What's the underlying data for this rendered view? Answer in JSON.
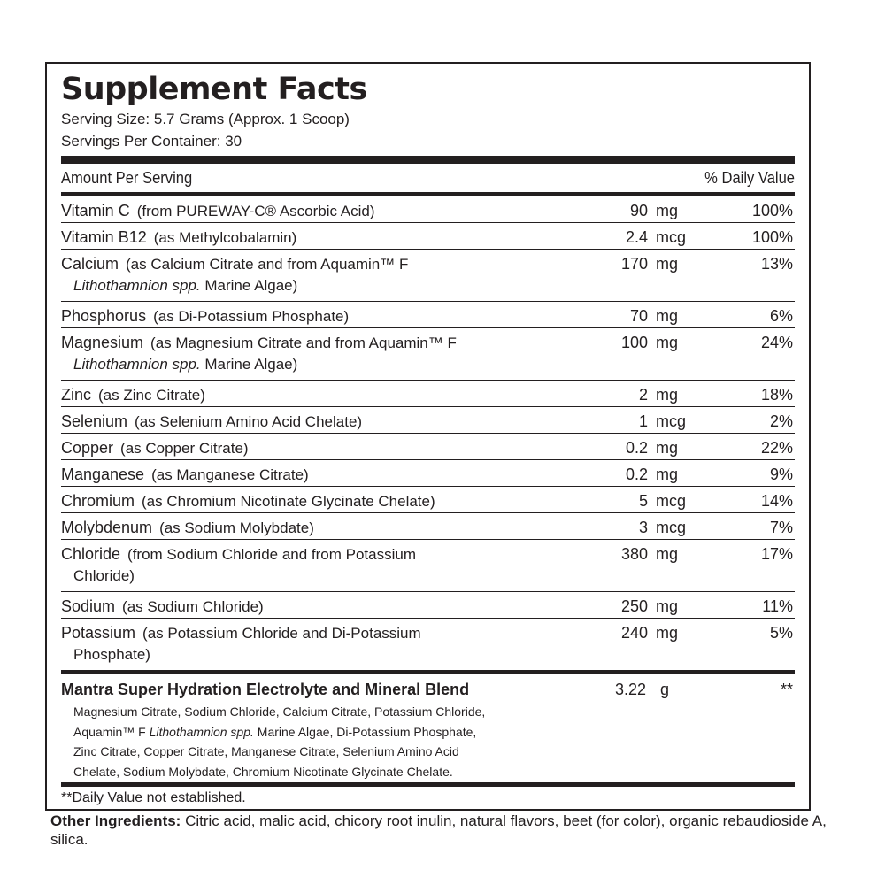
{
  "title": "Supplement Facts",
  "serving_size": "Serving Size: 5.7 Grams (Approx. 1 Scoop)",
  "servings_per_container": "Servings Per Container: 30",
  "header": {
    "amount": "Amount Per Serving",
    "daily_value": "% Daily Value"
  },
  "nutrients": [
    {
      "name": "Vitamin C",
      "source": "(from PUREWAY-C® Ascorbic Acid)",
      "cont": "",
      "amount": "90",
      "unit": "mg",
      "dv": "100%"
    },
    {
      "name": "Vitamin B12",
      "source": "(as Methylcobalamin)",
      "cont": "",
      "amount": "2.4",
      "unit": "mcg",
      "dv": "100%"
    },
    {
      "name": "Calcium",
      "source": "(as Calcium Citrate and from Aquamin™ F",
      "cont_italic": "Lithothamnion spp.",
      "cont": " Marine Algae)",
      "amount": "170",
      "unit": "mg",
      "dv": "13%"
    },
    {
      "name": "Phosphorus",
      "source": "(as Di-Potassium Phosphate)",
      "cont": "",
      "amount": "70",
      "unit": "mg",
      "dv": "6%"
    },
    {
      "name": "Magnesium",
      "source": "(as Magnesium Citrate and from Aquamin™ F",
      "cont_italic": "Lithothamnion spp.",
      "cont": " Marine Algae)",
      "amount": "100",
      "unit": "mg",
      "dv": "24%"
    },
    {
      "name": "Zinc",
      "source": "(as Zinc Citrate)",
      "cont": "",
      "amount": "2",
      "unit": "mg",
      "dv": "18%"
    },
    {
      "name": "Selenium",
      "source": "(as Selenium Amino Acid Chelate)",
      "cont": "",
      "amount": "1",
      "unit": "mcg",
      "dv": "2%"
    },
    {
      "name": "Copper",
      "source": "(as Copper Citrate)",
      "cont": "",
      "amount": "0.2",
      "unit": "mg",
      "dv": "22%"
    },
    {
      "name": "Manganese",
      "source": "(as Manganese Citrate)",
      "cont": "",
      "amount": "0.2",
      "unit": "mg",
      "dv": "9%"
    },
    {
      "name": "Chromium",
      "source": "(as Chromium Nicotinate Glycinate Chelate)",
      "cont": "",
      "amount": "5",
      "unit": "mcg",
      "dv": "14%"
    },
    {
      "name": "Molybdenum",
      "source": "(as Sodium Molybdate)",
      "cont": "",
      "amount": "3",
      "unit": "mcg",
      "dv": "7%"
    },
    {
      "name": "Chloride",
      "source": "(from Sodium Chloride and from Potassium",
      "cont": "Chloride)",
      "amount": "380",
      "unit": "mg",
      "dv": "17%"
    },
    {
      "name": "Sodium",
      "source": "(as Sodium Chloride)",
      "cont": "",
      "amount": "250",
      "unit": "mg",
      "dv": "11%"
    },
    {
      "name": "Potassium",
      "source": "(as Potassium Chloride and Di-Potassium",
      "cont": "Phosphate)",
      "amount": "240",
      "unit": "mg",
      "dv": "5%"
    }
  ],
  "blend": {
    "name": "Mantra Super Hydration Electrolyte and Mineral Blend",
    "amount": "3.22",
    "unit": "g",
    "dv": "**",
    "ingredients_1": "Magnesium Citrate, Sodium Chloride, Calcium Citrate, Potassium Chloride,",
    "ingredients_2a": "Aquamin™ F ",
    "ingredients_2_italic": "Lithothamnion spp.",
    "ingredients_2b": " Marine Algae, Di-Potassium Phosphate,",
    "ingredients_3": "Zinc Citrate, Copper Citrate, Manganese Citrate, Selenium Amino Acid",
    "ingredients_4": "Chelate, Sodium Molybdate, Chromium Nicotinate Glycinate Chelate."
  },
  "footnote": "**Daily Value not established.",
  "other_ingredients": {
    "label": "Other Ingredients:",
    "text": " Citric acid, malic acid, chicory root inulin, natural flavors, beet (for color), organic rebaudioside A, silica."
  }
}
